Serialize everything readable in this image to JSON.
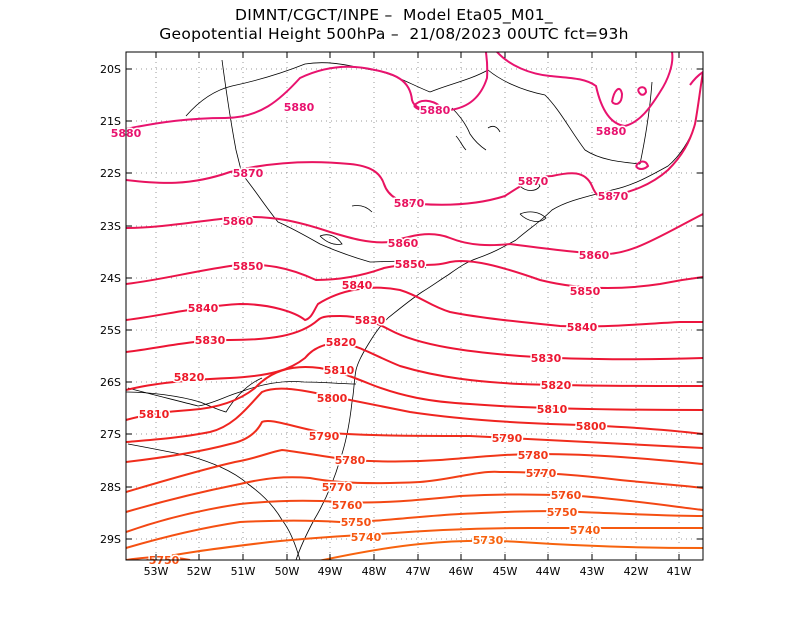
{
  "header": {
    "line1": "DIMNT/CGCT/INPE –  Model Eta05_M01_",
    "line2": "Geopotential Height 500hPa –  21/08/2023 00UTC fct=93h"
  },
  "axes": {
    "lat_ticks": [
      "20S",
      "21S",
      "22S",
      "23S",
      "24S",
      "25S",
      "26S",
      "27S",
      "28S",
      "29S"
    ],
    "lon_ticks": [
      "53W",
      "52W",
      "51W",
      "50W",
      "49W",
      "48W",
      "47W",
      "46W",
      "45W",
      "44W",
      "43W",
      "42W",
      "41W"
    ]
  },
  "colors": {
    "c5880": "#e8136f",
    "c5870": "#e8135f",
    "c5860": "#ea1555",
    "c5850": "#eb1449",
    "c5840": "#ec143e",
    "c5830": "#ec1534",
    "c5820": "#ed1a2a",
    "c5810": "#ee1e22",
    "c5800": "#ef2520",
    "c5790": "#f02d1c",
    "c5780": "#f13618",
    "c5770": "#f23f16",
    "c5760": "#f34714",
    "c5750": "#f55012",
    "c5740": "#f65a10",
    "c5730": "#f7630e"
  },
  "contours": [
    {
      "value": 5880,
      "labels": [
        "5880",
        "5880",
        "5880",
        "5880"
      ]
    },
    {
      "value": 5870,
      "labels": [
        "5870",
        "5870",
        "5870",
        "5870"
      ]
    },
    {
      "value": 5860,
      "labels": [
        "5860",
        "5860",
        "5860"
      ]
    },
    {
      "value": 5850,
      "labels": [
        "5850",
        "5850",
        "5850"
      ]
    },
    {
      "value": 5840,
      "labels": [
        "5840",
        "5840",
        "5840"
      ]
    },
    {
      "value": 5830,
      "labels": [
        "5830",
        "5830",
        "5830"
      ]
    },
    {
      "value": 5820,
      "labels": [
        "5820",
        "5820",
        "5820"
      ]
    },
    {
      "value": 5810,
      "labels": [
        "5810",
        "5810",
        "5810"
      ]
    },
    {
      "value": 5800,
      "labels": [
        "5800",
        "5800"
      ]
    },
    {
      "value": 5790,
      "labels": [
        "5790",
        "5790"
      ]
    },
    {
      "value": 5780,
      "labels": [
        "5780",
        "5780"
      ]
    },
    {
      "value": 5770,
      "labels": [
        "5770",
        "5770"
      ]
    },
    {
      "value": 5760,
      "labels": [
        "5760",
        "5760"
      ]
    },
    {
      "value": 5750,
      "labels": [
        "5750",
        "5750",
        "5750"
      ]
    },
    {
      "value": 5740,
      "labels": [
        "5740",
        "5740"
      ]
    },
    {
      "value": 5730,
      "labels": [
        "5730"
      ]
    }
  ]
}
